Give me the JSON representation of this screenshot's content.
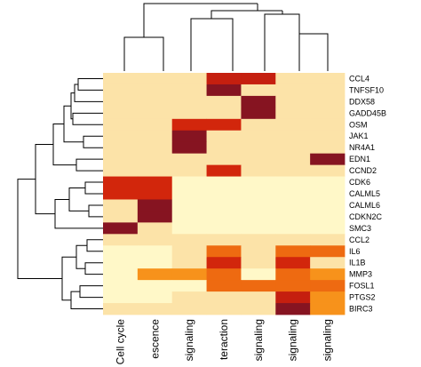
{
  "chart_data": {
    "type": "heatmap",
    "title": "",
    "rows": [
      "CCL4",
      "TNFSF10",
      "DDX58",
      "GADD45B",
      "OSM",
      "JAK1",
      "NR4A1",
      "EDN1",
      "CCND2",
      "CDK6",
      "CALML5",
      "CALML6",
      "CDKN2C",
      "SMC3",
      "CCL2",
      "IL6",
      "IL1B",
      "MMP3",
      "FOSL1",
      "PTGS2",
      "BIRC3"
    ],
    "columns": [
      "Cell cycle",
      "escence",
      "signaling",
      "teraction",
      "signaling",
      "signaling",
      "signaling"
    ],
    "values": [
      [
        1,
        1,
        1,
        5,
        5,
        1,
        1
      ],
      [
        1,
        1,
        1,
        6,
        1,
        1,
        1
      ],
      [
        1,
        1,
        1,
        1,
        6,
        1,
        1
      ],
      [
        1,
        1,
        1,
        1,
        6,
        1,
        1
      ],
      [
        1,
        1,
        4,
        4,
        1,
        1,
        1
      ],
      [
        1,
        1,
        6,
        1,
        1,
        1,
        1
      ],
      [
        1,
        1,
        6,
        1,
        1,
        1,
        1
      ],
      [
        1,
        1,
        1,
        1,
        1,
        1,
        6
      ],
      [
        1,
        1,
        1,
        4,
        1,
        1,
        1
      ],
      [
        4,
        4,
        0,
        0,
        0,
        0,
        0
      ],
      [
        4,
        4,
        0,
        0,
        0,
        0,
        0
      ],
      [
        1,
        6,
        0,
        0,
        0,
        0,
        0
      ],
      [
        1,
        6,
        0,
        0,
        0,
        0,
        0
      ],
      [
        6,
        1,
        0,
        0,
        0,
        0,
        0
      ],
      [
        1,
        1,
        1,
        1,
        1,
        1,
        1
      ],
      [
        0,
        0,
        1,
        3,
        1,
        3,
        3
      ],
      [
        0,
        0,
        1,
        4,
        1,
        4,
        1
      ],
      [
        0,
        2,
        2,
        3,
        0,
        3,
        2
      ],
      [
        0,
        0,
        0,
        3,
        3,
        3,
        3
      ],
      [
        0,
        0,
        1,
        1,
        1,
        5,
        2
      ],
      [
        1,
        1,
        1,
        1,
        1,
        6,
        2
      ]
    ],
    "colors": [
      "#fff8c8",
      "#fce3a8",
      "#f7921b",
      "#ee6a11",
      "#d2260c",
      "#c51f0f",
      "#861421"
    ],
    "grid": false
  }
}
